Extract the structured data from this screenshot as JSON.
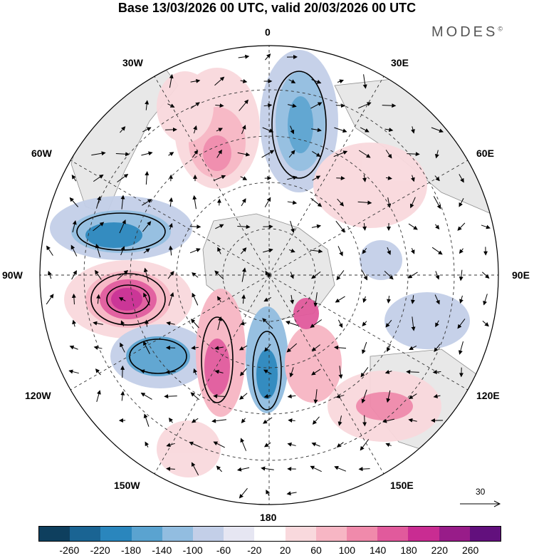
{
  "header": {
    "title": "Base 13/03/2026 00 UTC, valid 20/03/2026 00 UTC",
    "brand": "MODES",
    "brand_mark": "©"
  },
  "map": {
    "projection": "south polar stereographic",
    "longitude_labels": {
      "top": "0",
      "top_right": "30E",
      "upper_right": "60E",
      "right": "90E",
      "lower_right": "120E",
      "bottom_right": "150E",
      "bottom": "180",
      "bottom_left": "150W",
      "lower_left": "120W",
      "left": "90W",
      "upper_left": "60W",
      "top_left": "30W"
    },
    "reference_vector": "30"
  },
  "colorbar": {
    "colors": [
      "#0e3f5e",
      "#1a6493",
      "#2a86bd",
      "#5aa3d0",
      "#92bde0",
      "#c3cfe8",
      "#e6e6f2",
      "#ffffff",
      "#f9d9dd",
      "#f7b6c4",
      "#f08aab",
      "#e15a9c",
      "#c92c92",
      "#981c89",
      "#62107d"
    ],
    "tick_labels": [
      "-260",
      "-220",
      "-180",
      "-140",
      "-100",
      "-60",
      "-20",
      "20",
      "60",
      "100",
      "140",
      "180",
      "220",
      "260"
    ]
  }
}
